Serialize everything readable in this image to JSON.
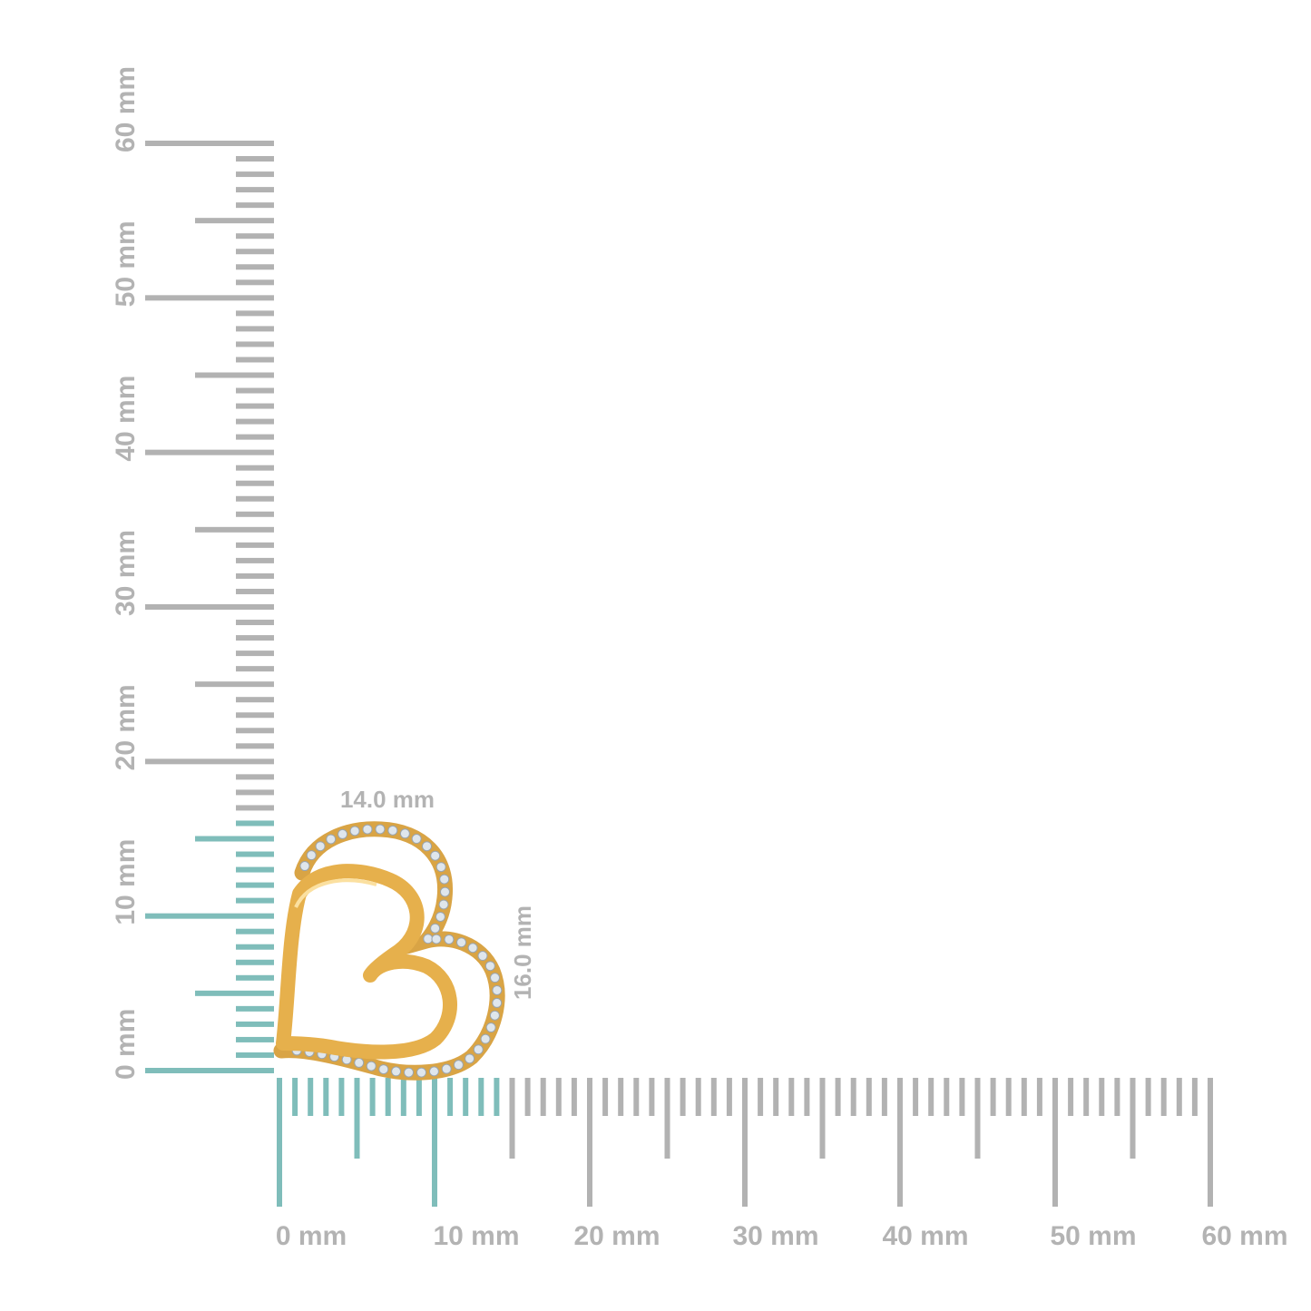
{
  "colors": {
    "ruler_gray": "#b2b2b2",
    "ruler_highlight": "#7fbdba",
    "label_gray": "#b3b3b3",
    "gold": "#e2ad4a",
    "gold_dark": "#c88a25",
    "stone": "#dfe6ec"
  },
  "horizontal_ruler": {
    "unit": "mm",
    "range": [
      0,
      60
    ],
    "highlight_to": 14,
    "labels": [
      "0 mm",
      "10 mm",
      "20 mm",
      "30 mm",
      "40 mm",
      "50 mm",
      "60 mm"
    ]
  },
  "vertical_ruler": {
    "unit": "mm",
    "range": [
      0,
      60
    ],
    "highlight_to": 16,
    "labels": [
      "0 mm",
      "10 mm",
      "20 mm",
      "30 mm",
      "40 mm",
      "50 mm",
      "60 mm"
    ]
  },
  "product": {
    "icon": "double-heart-pendant-icon",
    "width_label": "14.0 mm",
    "height_label": "16.0 mm"
  }
}
